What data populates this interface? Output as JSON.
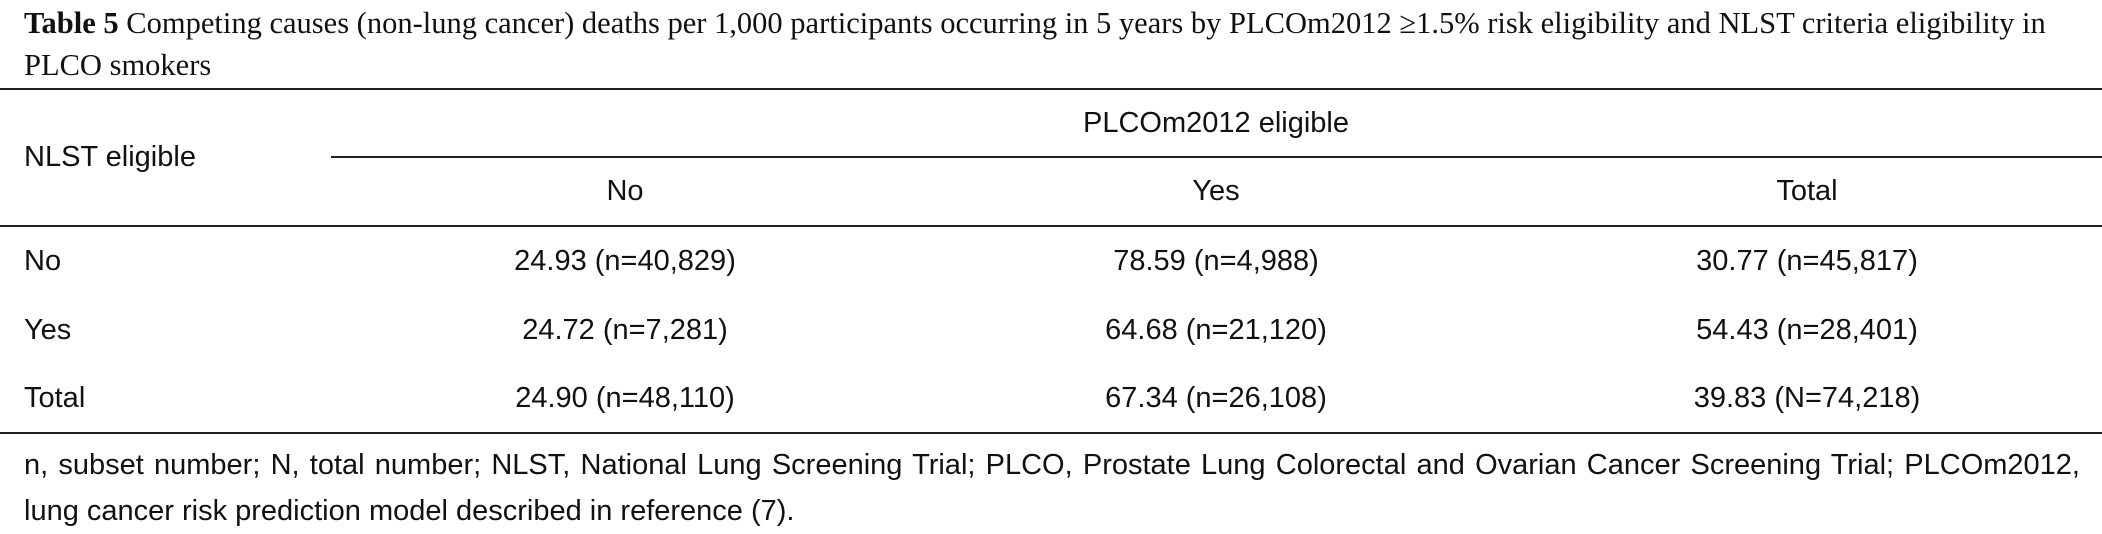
{
  "table": {
    "caption_label": "Table 5",
    "caption_text": " Competing causes (non-lung cancer) deaths per 1,000 participants occurring in 5 years by PLCOm2012 ≥1.5% risk eligibility and NLST criteria eligibility in PLCO smokers",
    "row_header": "NLST eligible",
    "spanning_header": "PLCOm2012 eligible",
    "columns": [
      "No",
      "Yes",
      "Total"
    ],
    "rows": [
      {
        "label": "No",
        "cells": [
          "24.93 (n=40,829)",
          "78.59 (n=4,988)",
          "30.77 (n=45,817)"
        ]
      },
      {
        "label": "Yes",
        "cells": [
          "24.72 (n=7,281)",
          "64.68 (n=21,120)",
          "54.43 (n=28,401)"
        ]
      },
      {
        "label": "Total",
        "cells": [
          "24.90 (n=48,110)",
          "67.34 (n=26,108)",
          "39.83 (N=74,218)"
        ]
      }
    ],
    "footnote": "n, subset number; N, total number; NLST, National Lung Screening Trial; PLCO, Prostate Lung Colorectal and Ovarian Cancer Screening Trial; PLCOm2012, lung cancer risk prediction model described in reference (7)."
  }
}
